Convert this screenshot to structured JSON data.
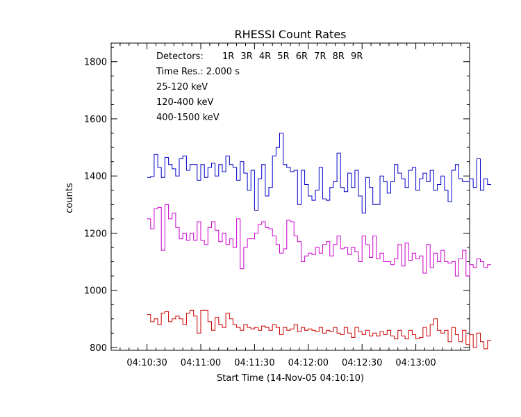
{
  "chart_data": {
    "type": "line",
    "title": "RHESSI Count Rates",
    "xlabel": "Start Time (14-Nov-05 04:10:10)",
    "ylabel": "counts",
    "x_ticks": [
      "04:10:30",
      "04:11:00",
      "04:11:30",
      "04:12:00",
      "04:12:30",
      "04:13:00"
    ],
    "y_ticks": [
      "800",
      "1000",
      "1200",
      "1400",
      "1600",
      "1800"
    ],
    "xlim": [
      "04:10:10",
      "04:13:30"
    ],
    "ylim": [
      790,
      1865
    ],
    "step": "2 s",
    "annotations": {
      "detectors_label": "Detectors:",
      "detectors": "1R 3R 4R 5R 6R 7R 8R 9R",
      "time_res": "Time Res.: 2.000 s"
    },
    "x_start": "04:10:30",
    "series": [
      {
        "name": "25-120 keV",
        "color": "#0000cc",
        "values": [
          1395,
          1398,
          1475,
          1430,
          1395,
          1465,
          1440,
          1425,
          1400,
          1460,
          1470,
          1420,
          1440,
          1440,
          1385,
          1440,
          1395,
          1430,
          1445,
          1400,
          1440,
          1415,
          1470,
          1440,
          1430,
          1385,
          1450,
          1410,
          1350,
          1420,
          1280,
          1390,
          1440,
          1330,
          1360,
          1470,
          1500,
          1550,
          1440,
          1430,
          1415,
          1420,
          1300,
          1420,
          1370,
          1330,
          1315,
          1350,
          1430,
          1320,
          1315,
          1360,
          1380,
          1480,
          1360,
          1345,
          1410,
          1360,
          1420,
          1330,
          1270,
          1395,
          1360,
          1300,
          1300,
          1400,
          1380,
          1340,
          1380,
          1440,
          1410,
          1390,
          1360,
          1420,
          1430,
          1350,
          1390,
          1410,
          1380,
          1420,
          1350,
          1370,
          1400,
          1350,
          1310,
          1420,
          1440,
          1390,
          1380,
          1380,
          1390,
          1360,
          1460,
          1350,
          1390,
          1370
        ]
      },
      {
        "name": "120-400 keV",
        "color": "#cc00cc",
        "values": [
          1250,
          1215,
          1285,
          1290,
          1140,
          1300,
          1250,
          1270,
          1220,
          1180,
          1200,
          1175,
          1200,
          1175,
          1240,
          1175,
          1160,
          1220,
          1240,
          1210,
          1170,
          1200,
          1160,
          1180,
          1150,
          1250,
          1075,
          1150,
          1180,
          1180,
          1200,
          1230,
          1240,
          1220,
          1215,
          1190,
          1160,
          1130,
          1145,
          1245,
          1240,
          1190,
          1170,
          1100,
          1120,
          1130,
          1125,
          1150,
          1130,
          1160,
          1170,
          1120,
          1160,
          1190,
          1145,
          1150,
          1125,
          1150,
          1135,
          1100,
          1190,
          1160,
          1115,
          1190,
          1110,
          1130,
          1100,
          1100,
          1090,
          1110,
          1160,
          1085,
          1165,
          1105,
          1130,
          1110,
          1120,
          1060,
          1160,
          1080,
          1130,
          1100,
          1140,
          1100,
          1095,
          1100,
          1050,
          1110,
          1140,
          1050,
          1090,
          1080,
          1110,
          1100,
          1080,
          1090
        ]
      },
      {
        "name": "400-1500 keV",
        "color": "#cc0000",
        "values": [
          915,
          890,
          900,
          880,
          920,
          925,
          890,
          900,
          910,
          900,
          880,
          920,
          930,
          910,
          850,
          930,
          930,
          890,
          860,
          905,
          880,
          870,
          920,
          900,
          880,
          870,
          860,
          880,
          870,
          865,
          870,
          860,
          875,
          870,
          860,
          880,
          870,
          845,
          870,
          860,
          865,
          880,
          855,
          870,
          860,
          865,
          860,
          855,
          870,
          850,
          860,
          855,
          870,
          850,
          845,
          870,
          850,
          835,
          870,
          855,
          845,
          860,
          840,
          850,
          840,
          855,
          845,
          860,
          840,
          830,
          860,
          840,
          830,
          860,
          845,
          830,
          835,
          870,
          840,
          880,
          900,
          860,
          850,
          860,
          820,
          870,
          845,
          820,
          860,
          810,
          845,
          800,
          850,
          820,
          795,
          825
        ]
      }
    ]
  }
}
